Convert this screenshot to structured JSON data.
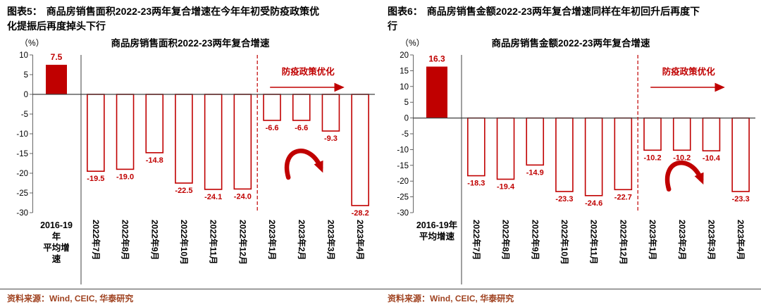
{
  "colors": {
    "bar": "#C00000",
    "axis": "#404040",
    "source_text": "#A04321"
  },
  "panels": [
    {
      "header_label": "图表5：",
      "header_text": "商品房销售面积2022-23两年复合增速在今年年初受防疫政策优化提振后再度掉头下行",
      "source": "资料来源：Wind, CEIC, 华泰研究"
    },
    {
      "header_label": "图表6：",
      "header_text": "商品房销售金额2022-23两年复合增速同样在年初回升后再度下行",
      "source": "资料来源：Wind, CEIC, 华泰研究"
    }
  ],
  "chart_data": [
    {
      "type": "bar",
      "title": "商品房销售面积2022-23两年复合增速",
      "unit_label": "（%）",
      "ylim": [
        -30,
        10
      ],
      "ytick_step": 5,
      "grid": false,
      "avg_category_lines": [
        "2016-19",
        "年",
        "平均增",
        "速"
      ],
      "avg_value": 7.5,
      "categories": [
        "2022年7月",
        "2022年8月",
        "2022年9月",
        "2022年10月",
        "2022年11月",
        "2022年12月",
        "2023年1月",
        "2023年2月",
        "2023年3月",
        "2023年4月"
      ],
      "values": [
        -19.5,
        -19,
        -14.8,
        -22.5,
        -24.1,
        -24,
        -6.6,
        -6.6,
        -9.3,
        -28.2
      ],
      "dashed_divider_after": "2022年12月",
      "annotation": "防疫政策优化"
    },
    {
      "type": "bar",
      "title": "商品房销售金额2022-23两年复合增速",
      "unit_label": "（%）",
      "ylim": [
        -30,
        20
      ],
      "ytick_step": 5,
      "grid": false,
      "avg_category_lines": [
        "2016-19年",
        "平均增速"
      ],
      "avg_value": 16.3,
      "categories": [
        "2022年7月",
        "2022年8月",
        "2022年9月",
        "2022年10月",
        "2022年11月",
        "2022年12月",
        "2023年1月",
        "2023年2月",
        "2023年3月",
        "2023年4月"
      ],
      "values": [
        -18.3,
        -19.4,
        -14.9,
        -23.3,
        -24.6,
        -22.7,
        -10.2,
        -10.2,
        -10.4,
        -23.3
      ],
      "dashed_divider_after": "2022年12月",
      "annotation": "防疫政策优化"
    }
  ]
}
